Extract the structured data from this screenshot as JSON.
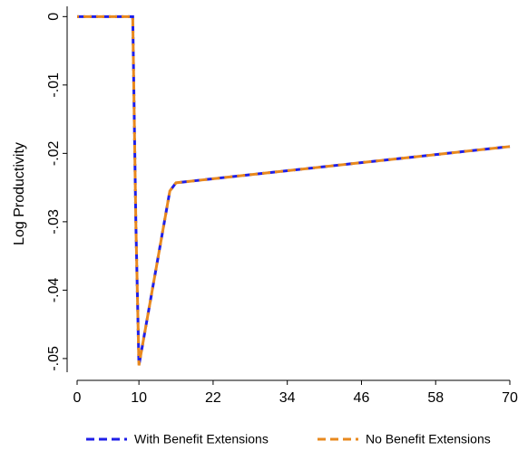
{
  "chart_data": {
    "type": "line",
    "y_label": "Log Productivity",
    "x": [
      0,
      9,
      9.5,
      10,
      15,
      16,
      70
    ],
    "series": [
      {
        "name": "With Benefit Extensions",
        "color": "#1f1fe8",
        "values": [
          0,
          0,
          -0.03,
          -0.051,
          -0.0255,
          -0.0243,
          -0.019
        ]
      },
      {
        "name": "No Benefit Extensions",
        "color": "#e8891e",
        "values": [
          0,
          0,
          -0.03,
          -0.051,
          -0.0255,
          -0.0243,
          -0.019
        ]
      }
    ],
    "xlim": [
      0,
      70
    ],
    "xticks": [
      0,
      10,
      22,
      34,
      46,
      58,
      70
    ],
    "ylim": [
      -0.052,
      0.0015
    ],
    "yticks": [
      0,
      {
        "value": -0.01,
        "label": "-.01"
      },
      {
        "value": -0.02,
        "label": "-.02"
      },
      {
        "value": -0.03,
        "label": "-.03"
      },
      {
        "value": -0.04,
        "label": "-.04"
      },
      {
        "value": -0.05,
        "label": "-.05"
      }
    ],
    "grid": false
  }
}
